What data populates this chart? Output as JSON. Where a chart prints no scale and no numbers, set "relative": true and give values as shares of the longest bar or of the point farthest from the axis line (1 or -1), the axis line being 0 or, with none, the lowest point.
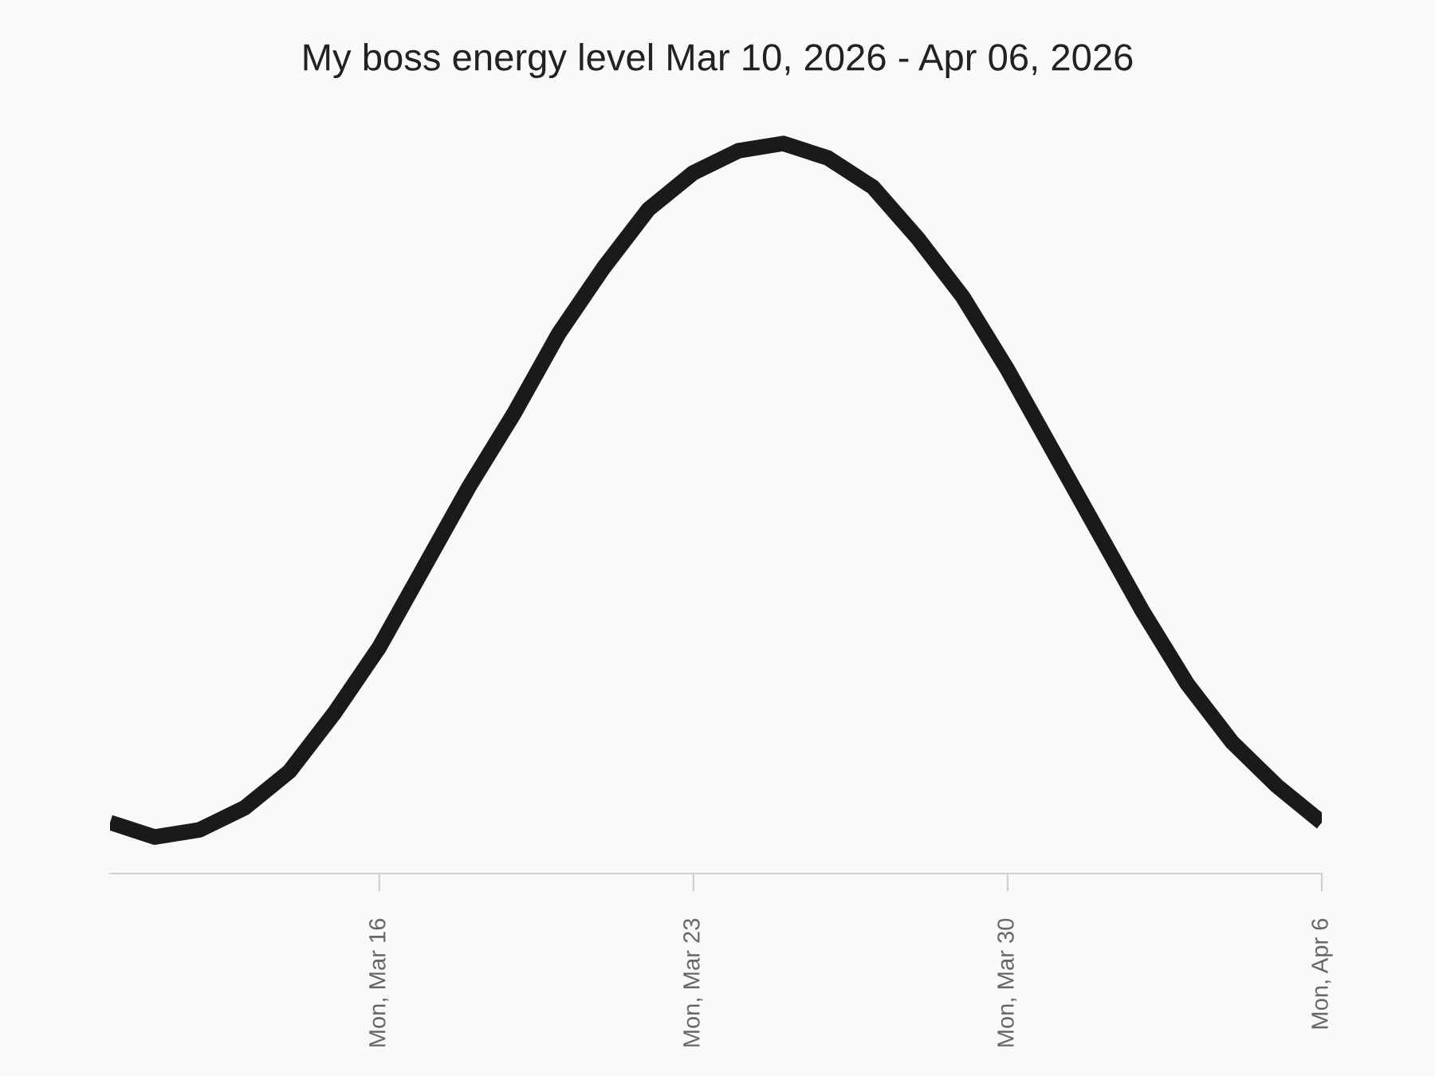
{
  "chart_data": {
    "type": "line",
    "title": "My boss energy level Mar 10, 2026 - Apr 06, 2026",
    "relative": true,
    "x": [
      "2026-03-10",
      "2026-03-11",
      "2026-03-12",
      "2026-03-13",
      "2026-03-14",
      "2026-03-15",
      "2026-03-16",
      "2026-03-17",
      "2026-03-18",
      "2026-03-19",
      "2026-03-20",
      "2026-03-21",
      "2026-03-22",
      "2026-03-23",
      "2026-03-24",
      "2026-03-25",
      "2026-03-26",
      "2026-03-27",
      "2026-03-28",
      "2026-03-29",
      "2026-03-30",
      "2026-03-31",
      "2026-04-01",
      "2026-04-02",
      "2026-04-03",
      "2026-04-04",
      "2026-04-05",
      "2026-04-06"
    ],
    "series": [
      {
        "color": "#1a1a1a",
        "values": [
          0.07,
          0.05,
          0.06,
          0.09,
          0.14,
          0.22,
          0.31,
          0.42,
          0.53,
          0.63,
          0.74,
          0.83,
          0.91,
          0.96,
          0.99,
          1,
          0.98,
          0.94,
          0.87,
          0.79,
          0.69,
          0.58,
          0.47,
          0.36,
          0.26,
          0.18,
          0.12,
          0.07
        ]
      }
    ],
    "xlim": [
      "2026-03-10",
      "2026-04-06"
    ],
    "xticks": [
      {
        "value": "2026-03-16",
        "label": "Mon, Mar 16"
      },
      {
        "value": "2026-03-23",
        "label": "Mon, Mar 23"
      },
      {
        "value": "2026-03-30",
        "label": "Mon, Mar 30"
      },
      {
        "value": "2026-04-06",
        "label": "Mon, Apr 6"
      }
    ],
    "tick_labels": "x",
    "grid": false,
    "marker": "none",
    "line_style": "solid"
  }
}
